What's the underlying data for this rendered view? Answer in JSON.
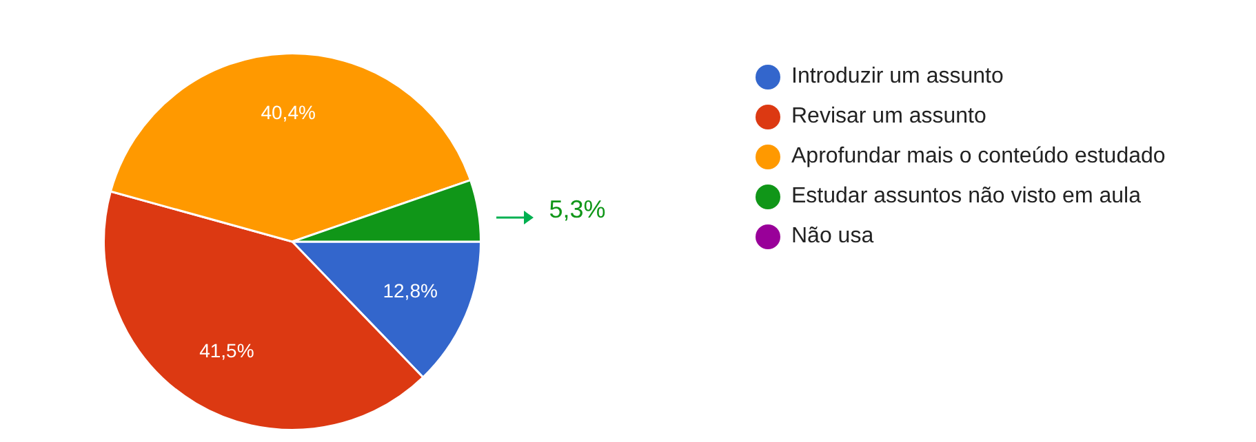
{
  "chart_data": {
    "type": "pie",
    "categories": [
      "Introduzir um assunto",
      "Revisar um assunto",
      "Aprofundar mais o conteúdo estudado",
      "Estudar assuntos não visto em aula",
      "Não usa"
    ],
    "values": [
      12.8,
      41.5,
      40.4,
      5.3,
      0
    ],
    "colors": [
      "#3366cc",
      "#dc3912",
      "#ff9900",
      "#109618",
      "#990099"
    ],
    "value_labels": [
      "12,8%",
      "41,5%",
      "40,4%",
      "5,3%",
      null
    ],
    "legend": "right"
  }
}
